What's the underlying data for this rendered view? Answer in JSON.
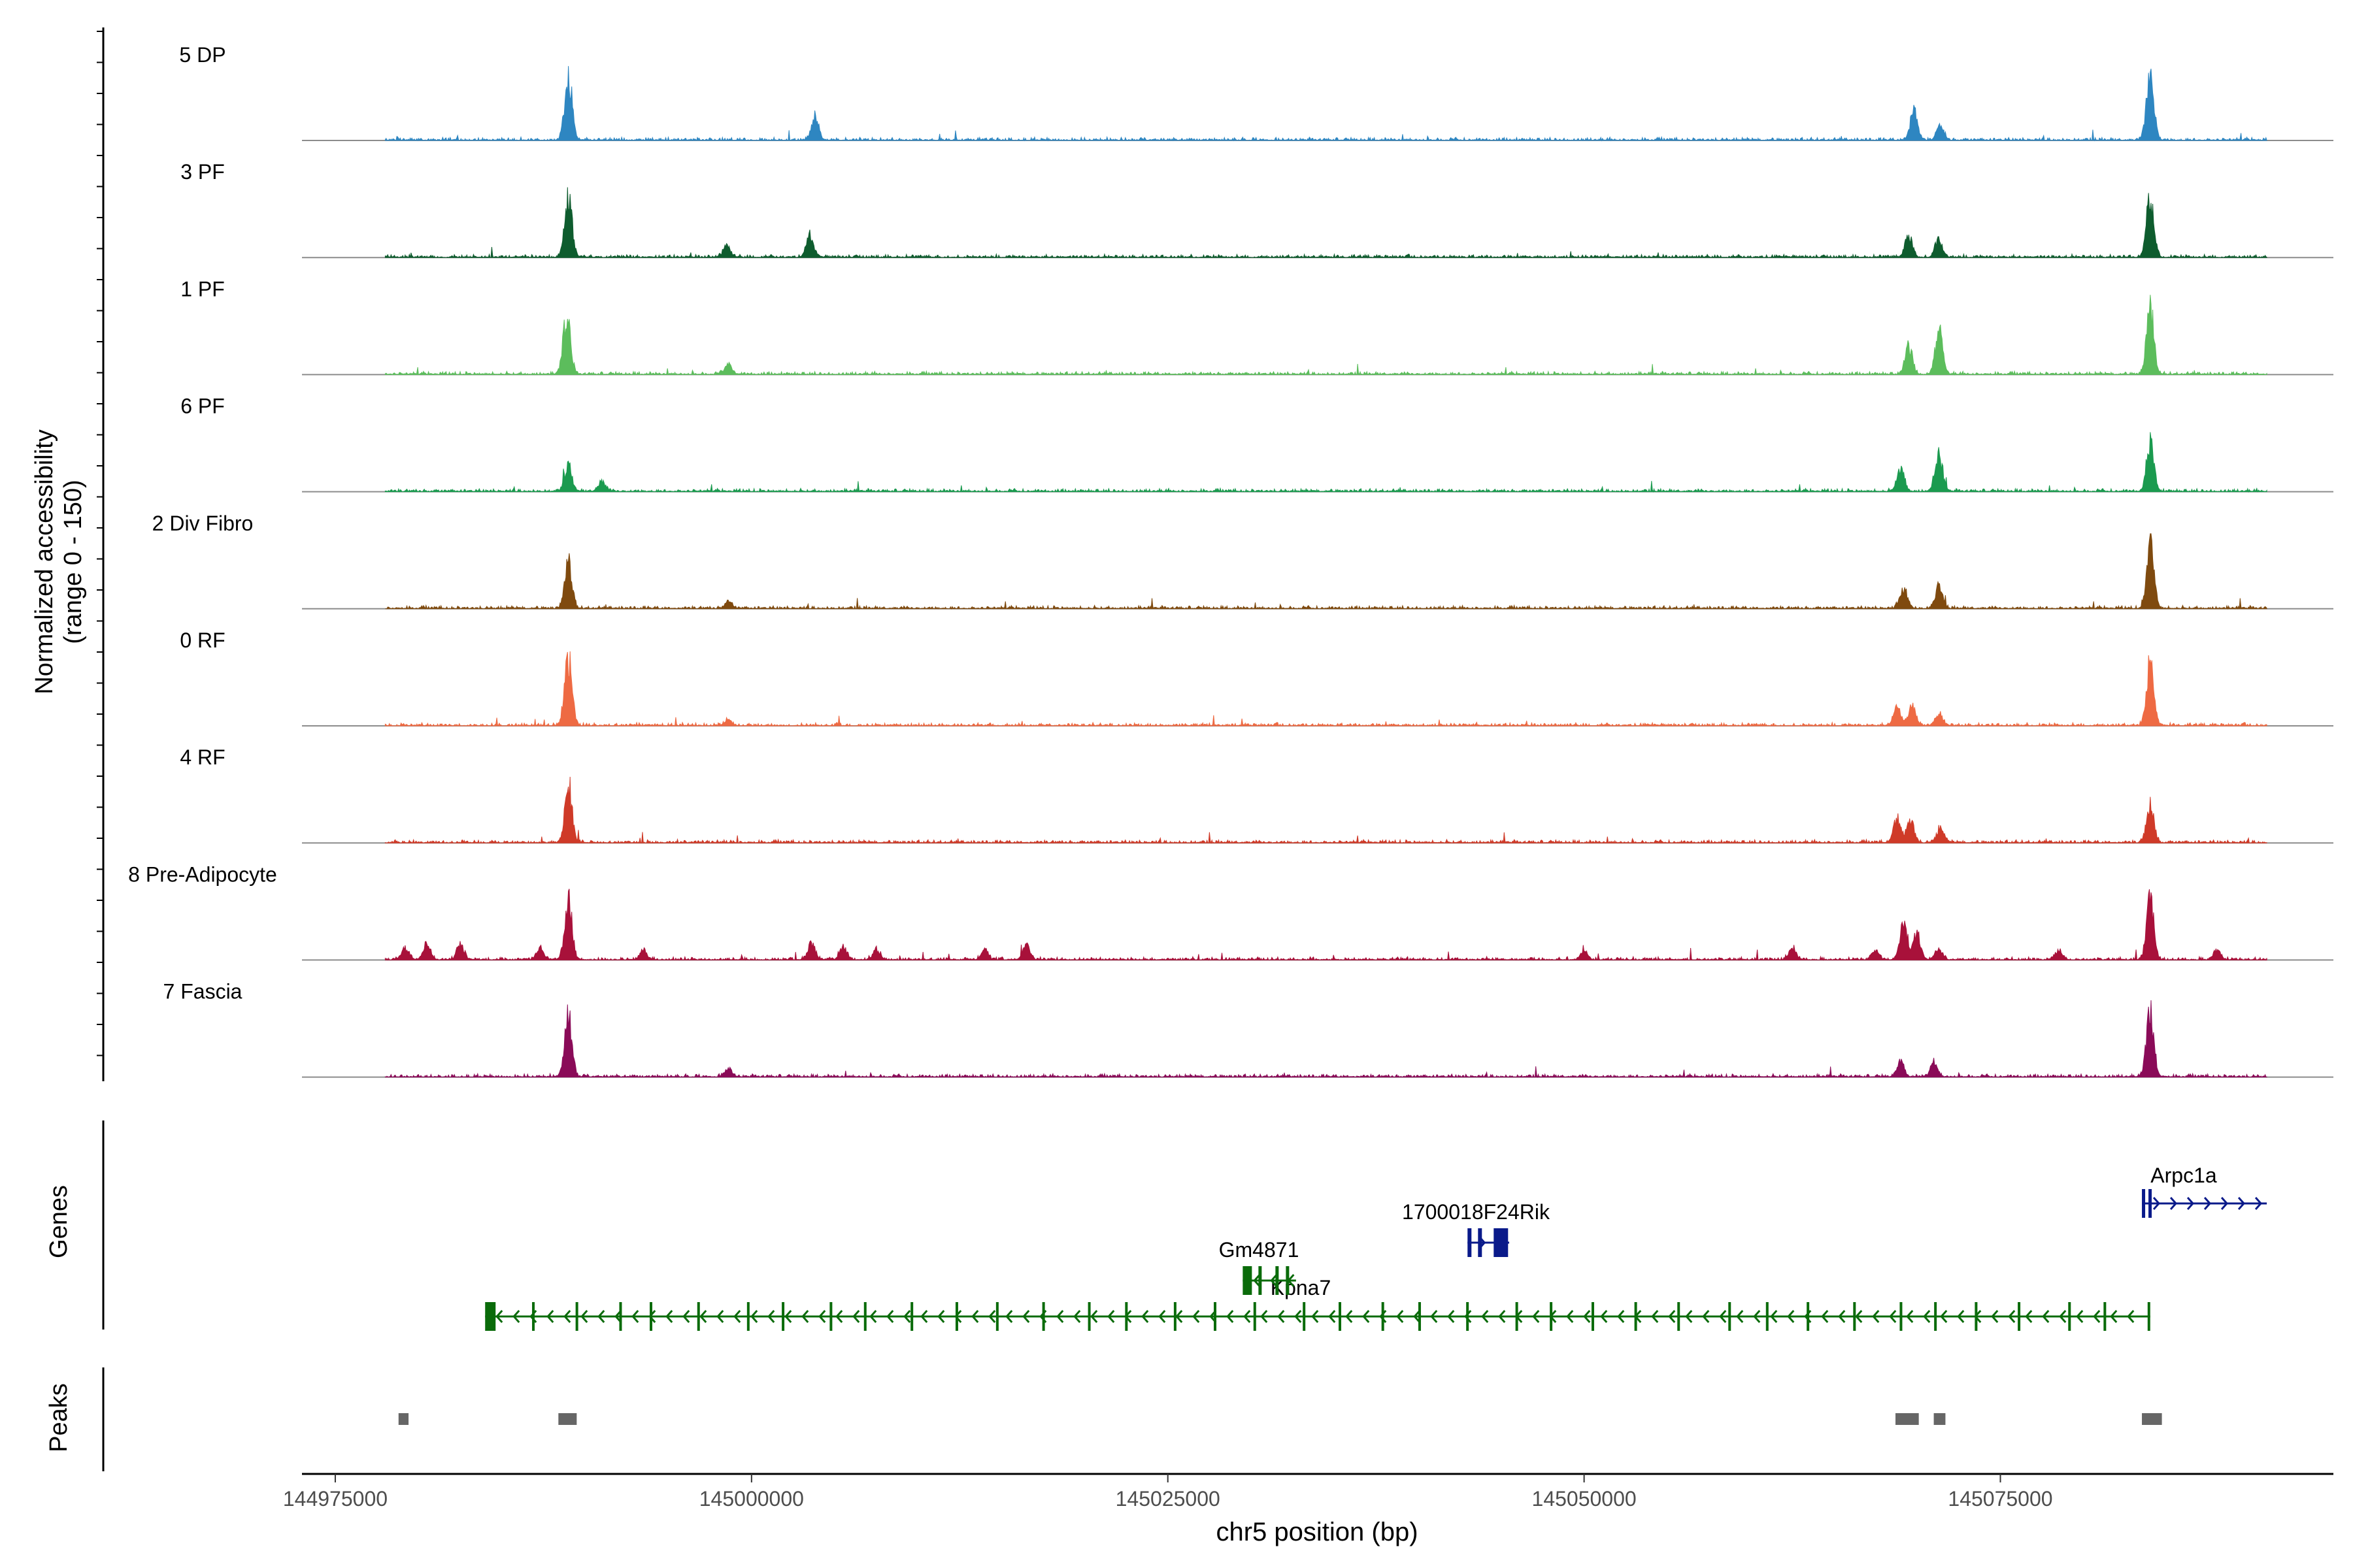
{
  "chart_data": {
    "type": "area",
    "title": "",
    "genomic_range": [
      144973000,
      145095000
    ],
    "accessibility_ylabel_line1": "Normalized accessibility",
    "accessibility_ylabel_line2": "(range 0 - 150)",
    "xlabel": "chr5 position (bp)",
    "x_ticks": [
      {
        "value": 144975000,
        "label": "144975000"
      },
      {
        "value": 145000000,
        "label": "145000000"
      },
      {
        "value": 145025000,
        "label": "145025000"
      },
      {
        "value": 145050000,
        "label": "145050000"
      },
      {
        "value": 145075000,
        "label": "145075000"
      }
    ],
    "ylim": [
      0,
      150
    ],
    "tracks": [
      {
        "name": "5 DP",
        "color": "#2e86c1",
        "peaks": [
          [
            144989000,
            135
          ],
          [
            145003800,
            50
          ],
          [
            145069800,
            60
          ],
          [
            145071400,
            30
          ],
          [
            145084000,
            145
          ]
        ]
      },
      {
        "name": "3 PF",
        "color": "#0e5c2e",
        "peaks": [
          [
            144989000,
            135
          ],
          [
            144998500,
            25
          ],
          [
            145003500,
            45
          ],
          [
            145069500,
            45
          ],
          [
            145071300,
            35
          ],
          [
            145084000,
            135
          ]
        ]
      },
      {
        "name": "1 PF",
        "color": "#5cbd5c",
        "peaks": [
          [
            144988900,
            120
          ],
          [
            144998600,
            20
          ],
          [
            145069500,
            60
          ],
          [
            145071300,
            95
          ],
          [
            145084000,
            140
          ]
        ]
      },
      {
        "name": "6 PF",
        "color": "#1b9a4f",
        "peaks": [
          [
            144989000,
            55
          ],
          [
            144991000,
            20
          ],
          [
            145069000,
            55
          ],
          [
            145071300,
            80
          ],
          [
            145084000,
            100
          ]
        ]
      },
      {
        "name": "2 Div Fibro",
        "color": "#7f4a0f",
        "peaks": [
          [
            144989000,
            100
          ],
          [
            144998600,
            15
          ],
          [
            145069200,
            45
          ],
          [
            145071300,
            45
          ],
          [
            145084000,
            135
          ]
        ]
      },
      {
        "name": "0 RF",
        "color": "#ee6a43",
        "peaks": [
          [
            144989000,
            140
          ],
          [
            144998600,
            12
          ],
          [
            145068800,
            40
          ],
          [
            145069700,
            45
          ],
          [
            145071300,
            25
          ],
          [
            145084000,
            135
          ]
        ]
      },
      {
        "name": "4 RF",
        "color": "#cf3a28",
        "peaks": [
          [
            144989000,
            125
          ],
          [
            145068800,
            50
          ],
          [
            145069600,
            45
          ],
          [
            145071400,
            30
          ],
          [
            145084000,
            80
          ]
        ]
      },
      {
        "name": "8 Pre-Adipocyte",
        "color": "#a8113a",
        "peaks": [
          [
            144979200,
            25
          ],
          [
            144980500,
            35
          ],
          [
            144982500,
            30
          ],
          [
            144987300,
            25
          ],
          [
            144989000,
            125
          ],
          [
            144993500,
            20
          ],
          [
            145003600,
            35
          ],
          [
            145005500,
            25
          ],
          [
            145007500,
            20
          ],
          [
            145014000,
            20
          ],
          [
            145016500,
            30
          ],
          [
            145050000,
            15
          ],
          [
            145062500,
            25
          ],
          [
            145067500,
            20
          ],
          [
            145069200,
            80
          ],
          [
            145070000,
            55
          ],
          [
            145071300,
            25
          ],
          [
            145078500,
            20
          ],
          [
            145084000,
            125
          ],
          [
            145088000,
            20
          ]
        ]
      },
      {
        "name": "7 Fascia",
        "color": "#8a0b58",
        "peaks": [
          [
            144989000,
            130
          ],
          [
            144998600,
            18
          ],
          [
            145069000,
            30
          ],
          [
            145071000,
            25
          ],
          [
            145084000,
            140
          ]
        ]
      }
    ],
    "genes_label": "Genes",
    "genes": [
      {
        "name": "Kpna7",
        "start": 144984000,
        "end": 145084000,
        "strand": "-",
        "color": "#0a6b0a"
      },
      {
        "name": "Gm4871",
        "start": 145029500,
        "end": 145032700,
        "strand": "-",
        "color": "#0a6b0a"
      },
      {
        "name": "1700018F24Rik",
        "start": 145043000,
        "end": 145045500,
        "strand": "+",
        "color": "#0a1a8a"
      },
      {
        "name": "Arpc1a",
        "start": 145083500,
        "end": 145091000,
        "strand": "+",
        "color": "#0a1a8a"
      }
    ],
    "peaks_label": "Peaks",
    "peak_regions": [
      [
        144978800,
        144979400
      ],
      [
        144988400,
        144989500
      ],
      [
        145068700,
        145070100
      ],
      [
        145071000,
        145071700
      ],
      [
        145083500,
        145084700
      ]
    ]
  }
}
